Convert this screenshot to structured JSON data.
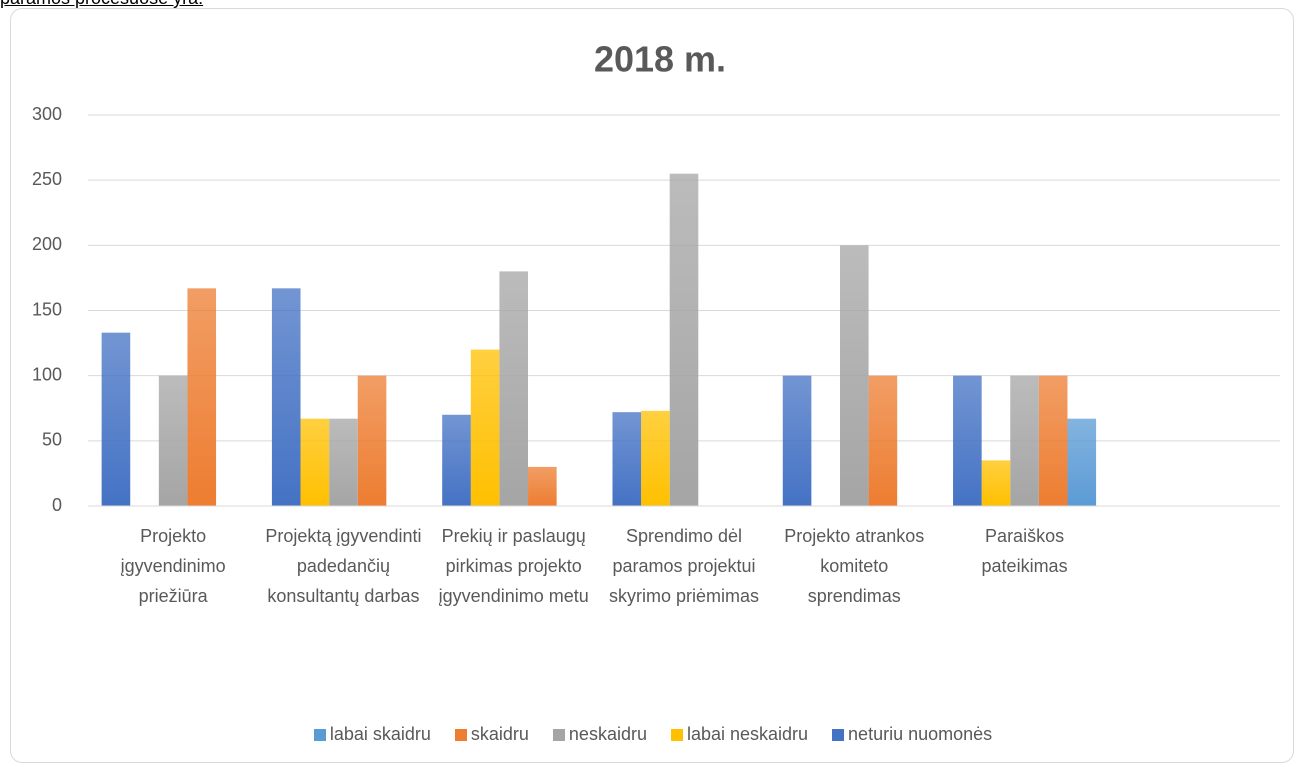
{
  "page": {
    "caption": "paramos procesuose yra:"
  },
  "chart_data": {
    "type": "bar",
    "title": "2018 m.",
    "categories": [
      "Projekto įgyvendinimo priežiūra",
      "Projektą įgyvendinti padedančių konsultantų darbas",
      "Prekių ir paslaugų pirkimas projekto įgyvendinimo metu",
      "Sprendimo dėl paramos projektui skyrimo priėmimas",
      "Projekto atrankos komiteto sprendimas",
      "Paraiškos pateikimas",
      null
    ],
    "series": [
      {
        "name": "labai skaidru",
        "color": "#5b9bd5",
        "values": [
          0,
          0,
          0,
          0,
          0,
          67,
          null
        ]
      },
      {
        "name": "skaidru",
        "color": "#ed7d31",
        "values": [
          167,
          100,
          30,
          0,
          100,
          100,
          null
        ]
      },
      {
        "name": "neskaidru",
        "color": "#a5a5a5",
        "values": [
          100,
          67,
          180,
          255,
          200,
          100,
          null
        ]
      },
      {
        "name": "labai neskaidru",
        "color": "#ffc000",
        "values": [
          0,
          67,
          120,
          73,
          0,
          35,
          null
        ]
      },
      {
        "name": "neturiu nuomonės",
        "color": "#4472c4",
        "values": [
          133,
          167,
          70,
          72,
          100,
          100,
          null
        ]
      }
    ],
    "bar_order": "reversed",
    "ylim": [
      0,
      300
    ],
    "yticks": [
      0,
      50,
      100,
      150,
      200,
      250,
      300
    ],
    "grid": true,
    "legend": "bottom"
  }
}
